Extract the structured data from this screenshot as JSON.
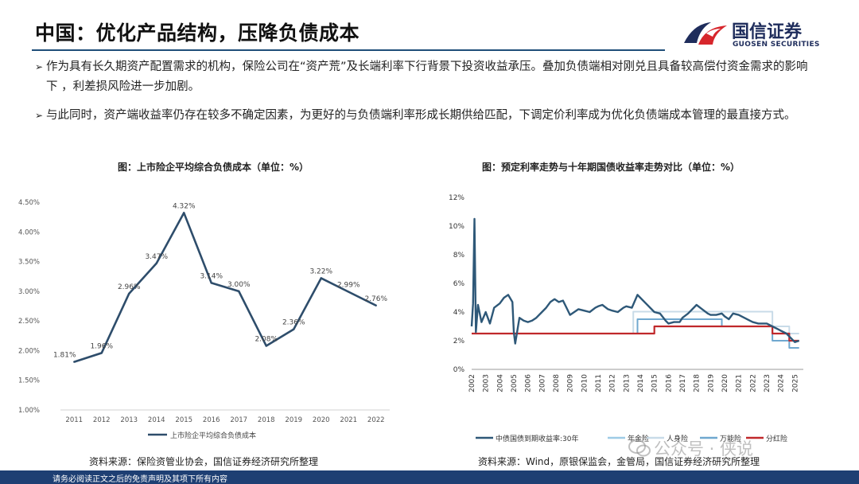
{
  "header": {
    "title": "中国：优化产品结构，压降负债成本",
    "logo_cn": "国信证券",
    "logo_en": "GUOSEN SECURITIES"
  },
  "bullets": [
    {
      "icon": "arrow-bullet-icon",
      "text": "作为具有长久期资产配置需求的机构，保险公司在“资产荒”及长端利率下行背景下投资收益承压。叠加负债端相对刚兑且具备较高偿付资金需求的影响下 ，利差损风险进一步加剧。"
    },
    {
      "icon": "arrow-bullet-icon",
      "text": "与此同时，资产端收益率仍存在较多不确定因素，为更好的与负债端利率形成长期供给匹配，下调定价利率成为优化负债端成本管理的最直接方式。"
    }
  ],
  "charts": {
    "left_title": "图：上市险企平均综合负债成本（单位：%）",
    "right_title": "图：预定利率走势与十年期国债收益率走势对比（单位：%）",
    "left_source": "资料来源：保险资管业协会，国信证券经济研究所整理",
    "right_source": "资料来源：Wind，原银保监会，金管局，国信证券经济研究所整理"
  },
  "chart_data": [
    {
      "type": "line",
      "categories": [
        "2011",
        "2012",
        "2013",
        "2014",
        "2015",
        "2016",
        "2017",
        "2018",
        "2019",
        "2020",
        "2021",
        "2022"
      ],
      "series": [
        {
          "name": "上市险企平均综合负债成本",
          "values": [
            1.81,
            1.96,
            2.96,
            3.47,
            4.32,
            3.14,
            3.0,
            2.08,
            2.36,
            3.22,
            2.99,
            2.76
          ],
          "color": "#2e4d6b"
        }
      ],
      "data_labels": [
        "1.81%",
        "1.96%",
        "2.96%",
        "3.47%",
        "4.32%",
        "3.14%",
        "3.00%",
        "2.08%",
        "2.36%",
        "3.22%",
        "2.99%",
        "2.76%"
      ],
      "yticks": [
        "1.00%",
        "1.50%",
        "2.00%",
        "2.50%",
        "3.00%",
        "3.50%",
        "4.00%",
        "4.50%"
      ],
      "ylim": [
        1.0,
        4.5
      ],
      "grid": false,
      "legend": "bottom"
    },
    {
      "type": "line",
      "categories": [
        "2002",
        "2003",
        "2004",
        "2005",
        "2006",
        "2007",
        "2008",
        "2009",
        "2010",
        "2011",
        "2012",
        "2013",
        "2014",
        "2015",
        "2016",
        "2017",
        "2018",
        "2019",
        "2020",
        "2021",
        "2022",
        "2023",
        "2024",
        "2025"
      ],
      "yticks": [
        "0%",
        "2%",
        "4%",
        "6%",
        "8%",
        "10%",
        "12%"
      ],
      "ylim": [
        0,
        12
      ],
      "legend": "bottom",
      "series": [
        {
          "name": "中债国债到期收益率:30年",
          "color": "#2e5878",
          "points": [
            [
              2002.0,
              3.0
            ],
            [
              2002.1,
              4.6
            ],
            [
              2002.2,
              10.5
            ],
            [
              2002.3,
              2.6
            ],
            [
              2002.45,
              4.5
            ],
            [
              2002.7,
              3.3
            ],
            [
              2003.0,
              4.0
            ],
            [
              2003.3,
              3.2
            ],
            [
              2003.6,
              4.3
            ],
            [
              2004.0,
              4.6
            ],
            [
              2004.3,
              5.0
            ],
            [
              2004.6,
              5.2
            ],
            [
              2004.9,
              4.7
            ],
            [
              2005.0,
              2.6
            ],
            [
              2005.1,
              1.8
            ],
            [
              2005.4,
              3.6
            ],
            [
              2005.7,
              3.4
            ],
            [
              2006.0,
              3.3
            ],
            [
              2006.3,
              3.4
            ],
            [
              2006.6,
              3.6
            ],
            [
              2007.0,
              4.0
            ],
            [
              2007.3,
              4.3
            ],
            [
              2007.6,
              4.7
            ],
            [
              2007.9,
              4.9
            ],
            [
              2008.2,
              4.7
            ],
            [
              2008.5,
              4.8
            ],
            [
              2008.8,
              4.2
            ],
            [
              2009.0,
              3.8
            ],
            [
              2009.3,
              4.0
            ],
            [
              2009.6,
              4.2
            ],
            [
              2010.0,
              4.1
            ],
            [
              2010.4,
              4.0
            ],
            [
              2010.8,
              4.3
            ],
            [
              2011.0,
              4.4
            ],
            [
              2011.3,
              4.5
            ],
            [
              2011.7,
              4.2
            ],
            [
              2012.0,
              4.1
            ],
            [
              2012.4,
              4.0
            ],
            [
              2012.8,
              4.3
            ],
            [
              2013.0,
              4.4
            ],
            [
              2013.4,
              4.3
            ],
            [
              2013.8,
              5.2
            ],
            [
              2014.0,
              5.0
            ],
            [
              2014.4,
              4.6
            ],
            [
              2014.8,
              4.2
            ],
            [
              2015.0,
              4.0
            ],
            [
              2015.4,
              3.9
            ],
            [
              2015.8,
              3.4
            ],
            [
              2016.0,
              3.2
            ],
            [
              2016.4,
              3.3
            ],
            [
              2016.8,
              3.3
            ],
            [
              2017.0,
              3.6
            ],
            [
              2017.4,
              3.9
            ],
            [
              2017.8,
              4.3
            ],
            [
              2018.0,
              4.5
            ],
            [
              2018.4,
              4.2
            ],
            [
              2018.8,
              3.9
            ],
            [
              2019.0,
              3.8
            ],
            [
              2019.4,
              3.8
            ],
            [
              2019.8,
              3.9
            ],
            [
              2020.0,
              3.7
            ],
            [
              2020.3,
              3.5
            ],
            [
              2020.6,
              3.9
            ],
            [
              2021.0,
              3.8
            ],
            [
              2021.4,
              3.6
            ],
            [
              2021.8,
              3.4
            ],
            [
              2022.0,
              3.3
            ],
            [
              2022.4,
              3.2
            ],
            [
              2022.8,
              3.2
            ],
            [
              2023.0,
              3.2
            ],
            [
              2023.4,
              3.0
            ],
            [
              2023.8,
              2.8
            ],
            [
              2024.0,
              2.7
            ],
            [
              2024.4,
              2.5
            ],
            [
              2024.8,
              2.1
            ],
            [
              2025.0,
              1.9
            ],
            [
              2025.3,
              2.0
            ]
          ]
        },
        {
          "name": "年金险",
          "color": "#9ecbe6",
          "points": [
            [
              2002.0,
              2.5
            ],
            [
              2013.8,
              2.5
            ],
            [
              2013.8,
              3.5
            ],
            [
              2019.8,
              3.5
            ],
            [
              2019.8,
              3.0
            ],
            [
              2023.4,
              3.0
            ],
            [
              2023.4,
              2.5
            ],
            [
              2024.6,
              2.5
            ],
            [
              2024.6,
              2.0
            ],
            [
              2025.3,
              2.0
            ]
          ]
        },
        {
          "name": "人身险",
          "color": "#c8dbe8",
          "points": [
            [
              2002.0,
              2.5
            ],
            [
              2013.5,
              2.5
            ],
            [
              2013.5,
              4.025
            ],
            [
              2023.4,
              4.025
            ],
            [
              2023.4,
              3.0
            ],
            [
              2024.6,
              3.0
            ],
            [
              2024.6,
              2.5
            ],
            [
              2025.3,
              2.5
            ]
          ]
        },
        {
          "name": "万能险",
          "color": "#6fa8cf",
          "points": [
            [
              2002.0,
              2.5
            ],
            [
              2013.8,
              2.5
            ],
            [
              2013.8,
              3.5
            ],
            [
              2019.8,
              3.5
            ],
            [
              2019.8,
              3.0
            ],
            [
              2023.4,
              3.0
            ],
            [
              2023.4,
              2.0
            ],
            [
              2024.6,
              2.0
            ],
            [
              2024.6,
              1.5
            ],
            [
              2025.3,
              1.5
            ]
          ]
        },
        {
          "name": "分红险",
          "color": "#c0282b",
          "points": [
            [
              2002.0,
              2.5
            ],
            [
              2015.0,
              2.5
            ],
            [
              2015.0,
              3.0
            ],
            [
              2023.4,
              3.0
            ],
            [
              2023.4,
              2.5
            ],
            [
              2024.6,
              2.5
            ],
            [
              2024.6,
              2.0
            ],
            [
              2025.3,
              2.0
            ]
          ]
        }
      ]
    }
  ],
  "watermark": {
    "icon": "wechat-icon",
    "text": "公众号 · 侠说"
  },
  "footer": {
    "disclaimer": "请务必阅读正文之后的免责声明及其项下所有内容"
  }
}
